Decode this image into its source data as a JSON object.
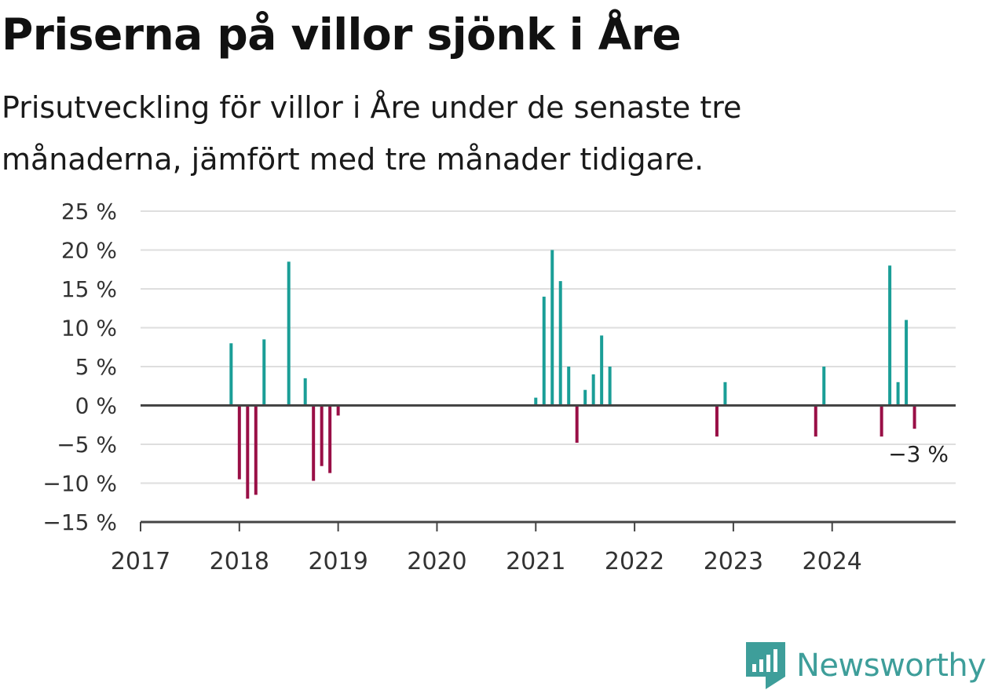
{
  "title": "Priserna på villor sjönk i Åre",
  "subtitle": "Prisutveckling för villor i Åre under de senaste tre månaderna, jämfört med tre månader tidigare.",
  "brand": {
    "name": "Newsworthy",
    "color": "#3e9e9a",
    "icon": "newsworthy-chart-icon"
  },
  "chart_data": {
    "type": "bar",
    "x_axis": {
      "type": "time",
      "min": "2017-01",
      "max": "2025-04",
      "tick_labels": [
        "2017",
        "2018",
        "2019",
        "2020",
        "2021",
        "2022",
        "2023",
        "2024"
      ]
    },
    "y_axis": {
      "min": -15,
      "max": 25,
      "tick_labels": [
        "25 %",
        "20 %",
        "15 %",
        "10 %",
        "5 %",
        "0 %",
        "−5 %",
        "−10 %",
        "−15 %"
      ],
      "tick_values": [
        25,
        20,
        15,
        10,
        5,
        0,
        -5,
        -10,
        -15
      ]
    },
    "grid": true,
    "colors": {
      "positive": "#1a9e97",
      "negative": "#990f46"
    },
    "points": [
      {
        "x": "2017-12",
        "value": 8
      },
      {
        "x": "2018-01",
        "value": -9.5
      },
      {
        "x": "2018-02",
        "value": -12
      },
      {
        "x": "2018-03",
        "value": -11.5
      },
      {
        "x": "2018-04",
        "value": 8.5
      },
      {
        "x": "2018-07",
        "value": 18.5
      },
      {
        "x": "2018-09",
        "value": 3.5
      },
      {
        "x": "2018-10",
        "value": -9.7
      },
      {
        "x": "2018-11",
        "value": -7.8
      },
      {
        "x": "2018-12",
        "value": -8.7
      },
      {
        "x": "2019-01",
        "value": -1.3
      },
      {
        "x": "2021-01",
        "value": 1
      },
      {
        "x": "2021-02",
        "value": 14
      },
      {
        "x": "2021-03",
        "value": 20
      },
      {
        "x": "2021-04",
        "value": 16
      },
      {
        "x": "2021-05",
        "value": 5
      },
      {
        "x": "2021-06",
        "value": -4.8
      },
      {
        "x": "2021-07",
        "value": 2
      },
      {
        "x": "2021-08",
        "value": 4
      },
      {
        "x": "2021-09",
        "value": 9
      },
      {
        "x": "2021-10",
        "value": 5
      },
      {
        "x": "2022-11",
        "value": -4
      },
      {
        "x": "2022-12",
        "value": 3
      },
      {
        "x": "2023-11",
        "value": -4
      },
      {
        "x": "2023-12",
        "value": 5
      },
      {
        "x": "2024-07",
        "value": -4
      },
      {
        "x": "2024-08",
        "value": 18
      },
      {
        "x": "2024-09",
        "value": 3
      },
      {
        "x": "2024-10",
        "value": 11
      },
      {
        "x": "2024-11",
        "value": -3
      }
    ],
    "annotation": {
      "x": "2024-11",
      "text": "−3 %"
    }
  }
}
